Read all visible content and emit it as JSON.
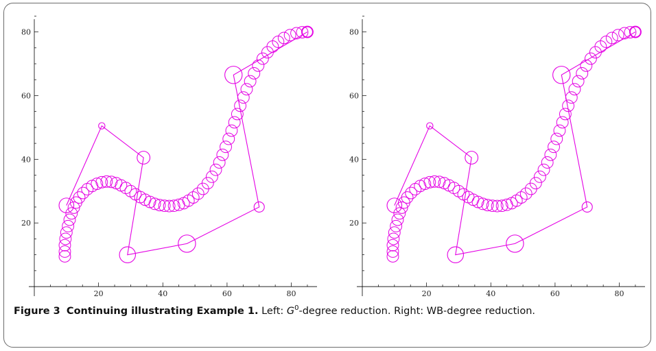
{
  "caption": {
    "figure_label": "Figure 3",
    "title": "Continuing illustrating Example 1.",
    "left_prefix": "Left: ",
    "left_math": "G",
    "left_sup": "0",
    "left_suffix": "-degree reduction. Right: WB-degree reduction."
  },
  "colors": {
    "curve": "#e400e4",
    "axis": "#000000"
  },
  "chart_data": [
    {
      "type": "scatter",
      "panel": "left",
      "xlim": [
        0,
        88
      ],
      "ylim": [
        -3,
        84
      ],
      "xticks": [
        "20",
        "40",
        "60",
        "80"
      ],
      "yticks": [
        "20",
        "40",
        "60",
        "80"
      ],
      "control_polygon": [
        {
          "x": 10,
          "y": 25.5,
          "r": 2.3
        },
        {
          "x": 21,
          "y": 50.5,
          "r": 1.0
        },
        {
          "x": 34,
          "y": 40.5,
          "r": 2.0
        },
        {
          "x": 29,
          "y": 10,
          "r": 2.5
        },
        {
          "x": 47.5,
          "y": 13.5,
          "r": 2.7
        },
        {
          "x": 70,
          "y": 25,
          "r": 1.6
        },
        {
          "x": 62,
          "y": 66.5,
          "r": 2.7
        },
        {
          "x": 85,
          "y": 80,
          "r": 1.6
        }
      ],
      "curve": [
        {
          "x": 9.5,
          "y": 9.5
        },
        {
          "x": 9.5,
          "y": 11
        },
        {
          "x": 9.5,
          "y": 13
        },
        {
          "x": 9.7,
          "y": 15
        },
        {
          "x": 10,
          "y": 17
        },
        {
          "x": 10.5,
          "y": 19
        },
        {
          "x": 11,
          "y": 21
        },
        {
          "x": 11.6,
          "y": 23
        },
        {
          "x": 12.3,
          "y": 24.8
        },
        {
          "x": 13,
          "y": 26.4
        },
        {
          "x": 14,
          "y": 28
        },
        {
          "x": 15.2,
          "y": 29.4
        },
        {
          "x": 16.5,
          "y": 30.6
        },
        {
          "x": 18,
          "y": 31.6
        },
        {
          "x": 19.5,
          "y": 32.3
        },
        {
          "x": 21,
          "y": 32.8
        },
        {
          "x": 22.5,
          "y": 33
        },
        {
          "x": 24,
          "y": 32.9
        },
        {
          "x": 25.5,
          "y": 32.5
        },
        {
          "x": 27,
          "y": 31.8
        },
        {
          "x": 28.5,
          "y": 31
        },
        {
          "x": 30,
          "y": 30
        },
        {
          "x": 31.5,
          "y": 29
        },
        {
          "x": 33,
          "y": 28.1
        },
        {
          "x": 34.5,
          "y": 27.3
        },
        {
          "x": 36,
          "y": 26.6
        },
        {
          "x": 37.5,
          "y": 26
        },
        {
          "x": 39,
          "y": 25.6
        },
        {
          "x": 40.5,
          "y": 25.4
        },
        {
          "x": 42,
          "y": 25.3
        },
        {
          "x": 43.5,
          "y": 25.4
        },
        {
          "x": 45,
          "y": 25.7
        },
        {
          "x": 46.5,
          "y": 26.2
        },
        {
          "x": 48,
          "y": 27
        },
        {
          "x": 49.5,
          "y": 28
        },
        {
          "x": 51,
          "y": 29.2
        },
        {
          "x": 52.5,
          "y": 30.7
        },
        {
          "x": 54,
          "y": 32.5
        },
        {
          "x": 55.3,
          "y": 34.5
        },
        {
          "x": 56.5,
          "y": 36.7
        },
        {
          "x": 57.6,
          "y": 39
        },
        {
          "x": 58.6,
          "y": 41.4
        },
        {
          "x": 59.6,
          "y": 43.9
        },
        {
          "x": 60.5,
          "y": 46.4
        },
        {
          "x": 61.4,
          "y": 49
        },
        {
          "x": 62.3,
          "y": 51.6
        },
        {
          "x": 63.2,
          "y": 54.2
        },
        {
          "x": 64.1,
          "y": 56.8
        },
        {
          "x": 65.1,
          "y": 59.4
        },
        {
          "x": 66.1,
          "y": 62
        },
        {
          "x": 67.2,
          "y": 64.5
        },
        {
          "x": 68.4,
          "y": 67
        },
        {
          "x": 69.7,
          "y": 69.4
        },
        {
          "x": 71.1,
          "y": 71.6
        },
        {
          "x": 72.6,
          "y": 73.6
        },
        {
          "x": 74.2,
          "y": 75.4
        },
        {
          "x": 75.9,
          "y": 76.9
        },
        {
          "x": 77.7,
          "y": 78.1
        },
        {
          "x": 79.6,
          "y": 79
        },
        {
          "x": 81.6,
          "y": 79.6
        },
        {
          "x": 83.4,
          "y": 79.9
        },
        {
          "x": 85,
          "y": 80
        }
      ]
    },
    {
      "type": "scatter",
      "panel": "right",
      "xlim": [
        0,
        88
      ],
      "ylim": [
        -3,
        84
      ],
      "xticks": [
        "20",
        "40",
        "60",
        "80"
      ],
      "yticks": [
        "20",
        "40",
        "60",
        "80"
      ],
      "control_polygon": [
        {
          "x": 10,
          "y": 25.5,
          "r": 2.3
        },
        {
          "x": 21,
          "y": 50.5,
          "r": 1.0
        },
        {
          "x": 34,
          "y": 40.5,
          "r": 2.0
        },
        {
          "x": 29,
          "y": 10,
          "r": 2.5
        },
        {
          "x": 47.5,
          "y": 13.5,
          "r": 2.7
        },
        {
          "x": 70,
          "y": 25,
          "r": 1.6
        },
        {
          "x": 62,
          "y": 66.5,
          "r": 2.7
        },
        {
          "x": 85,
          "y": 80,
          "r": 1.6
        }
      ],
      "curve": [
        {
          "x": 9.5,
          "y": 9.5
        },
        {
          "x": 9.5,
          "y": 11
        },
        {
          "x": 9.5,
          "y": 13
        },
        {
          "x": 9.7,
          "y": 15
        },
        {
          "x": 10,
          "y": 17
        },
        {
          "x": 10.5,
          "y": 19
        },
        {
          "x": 11,
          "y": 21
        },
        {
          "x": 11.6,
          "y": 23
        },
        {
          "x": 12.3,
          "y": 24.8
        },
        {
          "x": 13,
          "y": 26.4
        },
        {
          "x": 14,
          "y": 28
        },
        {
          "x": 15.2,
          "y": 29.4
        },
        {
          "x": 16.5,
          "y": 30.6
        },
        {
          "x": 18,
          "y": 31.6
        },
        {
          "x": 19.5,
          "y": 32.3
        },
        {
          "x": 21,
          "y": 32.8
        },
        {
          "x": 22.5,
          "y": 33
        },
        {
          "x": 24,
          "y": 32.9
        },
        {
          "x": 25.5,
          "y": 32.5
        },
        {
          "x": 27,
          "y": 31.8
        },
        {
          "x": 28.5,
          "y": 31
        },
        {
          "x": 30,
          "y": 30
        },
        {
          "x": 31.5,
          "y": 29
        },
        {
          "x": 33,
          "y": 28.1
        },
        {
          "x": 34.5,
          "y": 27.3
        },
        {
          "x": 36,
          "y": 26.6
        },
        {
          "x": 37.5,
          "y": 26
        },
        {
          "x": 39,
          "y": 25.6
        },
        {
          "x": 40.5,
          "y": 25.4
        },
        {
          "x": 42,
          "y": 25.3
        },
        {
          "x": 43.5,
          "y": 25.4
        },
        {
          "x": 45,
          "y": 25.7
        },
        {
          "x": 46.5,
          "y": 26.2
        },
        {
          "x": 48,
          "y": 27
        },
        {
          "x": 49.5,
          "y": 28
        },
        {
          "x": 51,
          "y": 29.2
        },
        {
          "x": 52.5,
          "y": 30.7
        },
        {
          "x": 54,
          "y": 32.5
        },
        {
          "x": 55.3,
          "y": 34.5
        },
        {
          "x": 56.5,
          "y": 36.7
        },
        {
          "x": 57.6,
          "y": 39
        },
        {
          "x": 58.6,
          "y": 41.4
        },
        {
          "x": 59.6,
          "y": 43.9
        },
        {
          "x": 60.5,
          "y": 46.4
        },
        {
          "x": 61.4,
          "y": 49
        },
        {
          "x": 62.3,
          "y": 51.6
        },
        {
          "x": 63.2,
          "y": 54.2
        },
        {
          "x": 64.1,
          "y": 56.8
        },
        {
          "x": 65.1,
          "y": 59.4
        },
        {
          "x": 66.1,
          "y": 62
        },
        {
          "x": 67.2,
          "y": 64.5
        },
        {
          "x": 68.4,
          "y": 67
        },
        {
          "x": 69.7,
          "y": 69.4
        },
        {
          "x": 71.1,
          "y": 71.6
        },
        {
          "x": 72.6,
          "y": 73.6
        },
        {
          "x": 74.2,
          "y": 75.4
        },
        {
          "x": 75.9,
          "y": 76.9
        },
        {
          "x": 77.7,
          "y": 78.1
        },
        {
          "x": 79.6,
          "y": 79
        },
        {
          "x": 81.6,
          "y": 79.6
        },
        {
          "x": 83.4,
          "y": 79.9
        },
        {
          "x": 85,
          "y": 80
        }
      ]
    }
  ]
}
